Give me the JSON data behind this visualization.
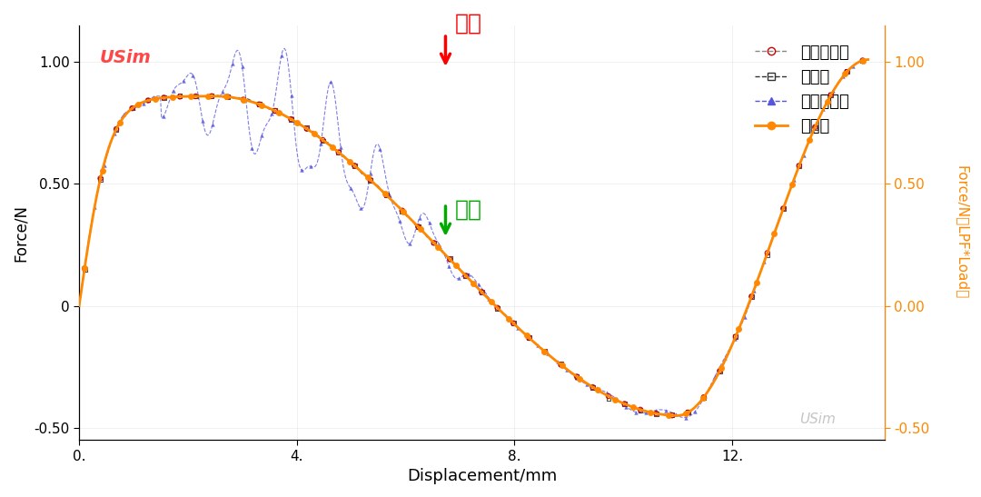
{
  "xlabel": "Displacement/mm",
  "ylabel_left": "Force/N",
  "ylabel_right": "Force/N（LPF*Load）",
  "xlim": [
    0,
    14.8
  ],
  "ylim": [
    -0.55,
    1.15
  ],
  "xticks": [
    0,
    4,
    8,
    12
  ],
  "xtick_labels": [
    "0.",
    "4.",
    "8.",
    "12."
  ],
  "yticks_left": [
    -0.5,
    0.0,
    0.5,
    1.0
  ],
  "ytick_labels_left": [
    "-0.50",
    "0",
    "0.50",
    "1.00"
  ],
  "yticks_right": [
    -0.5,
    0.0,
    0.5,
    1.0
  ],
  "ytick_labels_right": [
    "-0.50",
    "0.00",
    "0.50",
    "1.00"
  ],
  "legend_labels": [
    "隐式动力学",
    "静力学",
    "显式动力学",
    "弧长法"
  ],
  "color_implicit_line": "#888888",
  "color_implicit_marker": "#CC0000",
  "color_static": "#333333",
  "color_explicit": "#5555DD",
  "color_arc": "#FF8800",
  "annotation_load_text": "加载",
  "annotation_disp_text": "位移",
  "usim_text": "USim",
  "bg_color": "#FFFFFF"
}
